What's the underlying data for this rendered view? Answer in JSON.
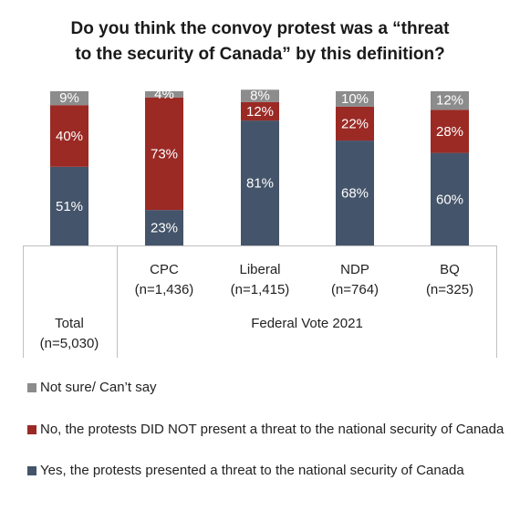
{
  "chart_data": {
    "type": "bar",
    "stacked": true,
    "title_lines": [
      "Do you think the convoy protest was a “threat",
      "to the security of Canada” by this definition?"
    ],
    "categories": [
      {
        "lines": [
          "Total",
          "(n=5,030)"
        ]
      },
      {
        "lines": [
          "CPC",
          "(n=1,436)"
        ]
      },
      {
        "lines": [
          "Liberal",
          "(n=1,415)"
        ]
      },
      {
        "lines": [
          "NDP",
          "(n=764)"
        ]
      },
      {
        "lines": [
          "BQ",
          "(n=325)"
        ]
      }
    ],
    "group_label": "Federal Vote 2021",
    "ylim": [
      0,
      100
    ],
    "series": [
      {
        "name": "Yes, the protests presented a threat to the national security of Canada",
        "color": "#44546a",
        "label_color": "#ffffff",
        "values": [
          51,
          23,
          81,
          68,
          60
        ]
      },
      {
        "name": "No, the protests DID NOT present a threat to the national security of Canada",
        "color": "#9b2a25",
        "label_color": "#ffffff",
        "values": [
          40,
          73,
          12,
          22,
          28
        ]
      },
      {
        "name": "Not sure/ Can’t say",
        "color": "#8c8c8c",
        "label_color": "#ffffff",
        "values": [
          9,
          4,
          8,
          10,
          12
        ]
      }
    ],
    "data_labels": [
      [
        "51%",
        "23%",
        "81%",
        "68%",
        "60%"
      ],
      [
        "40%",
        "73%",
        "12%",
        "22%",
        "28%"
      ],
      [
        "9%",
        "4%",
        "8%",
        "10%",
        "12%"
      ]
    ],
    "legend": {
      "position": "bottom",
      "order": [
        2,
        1,
        0
      ]
    }
  }
}
